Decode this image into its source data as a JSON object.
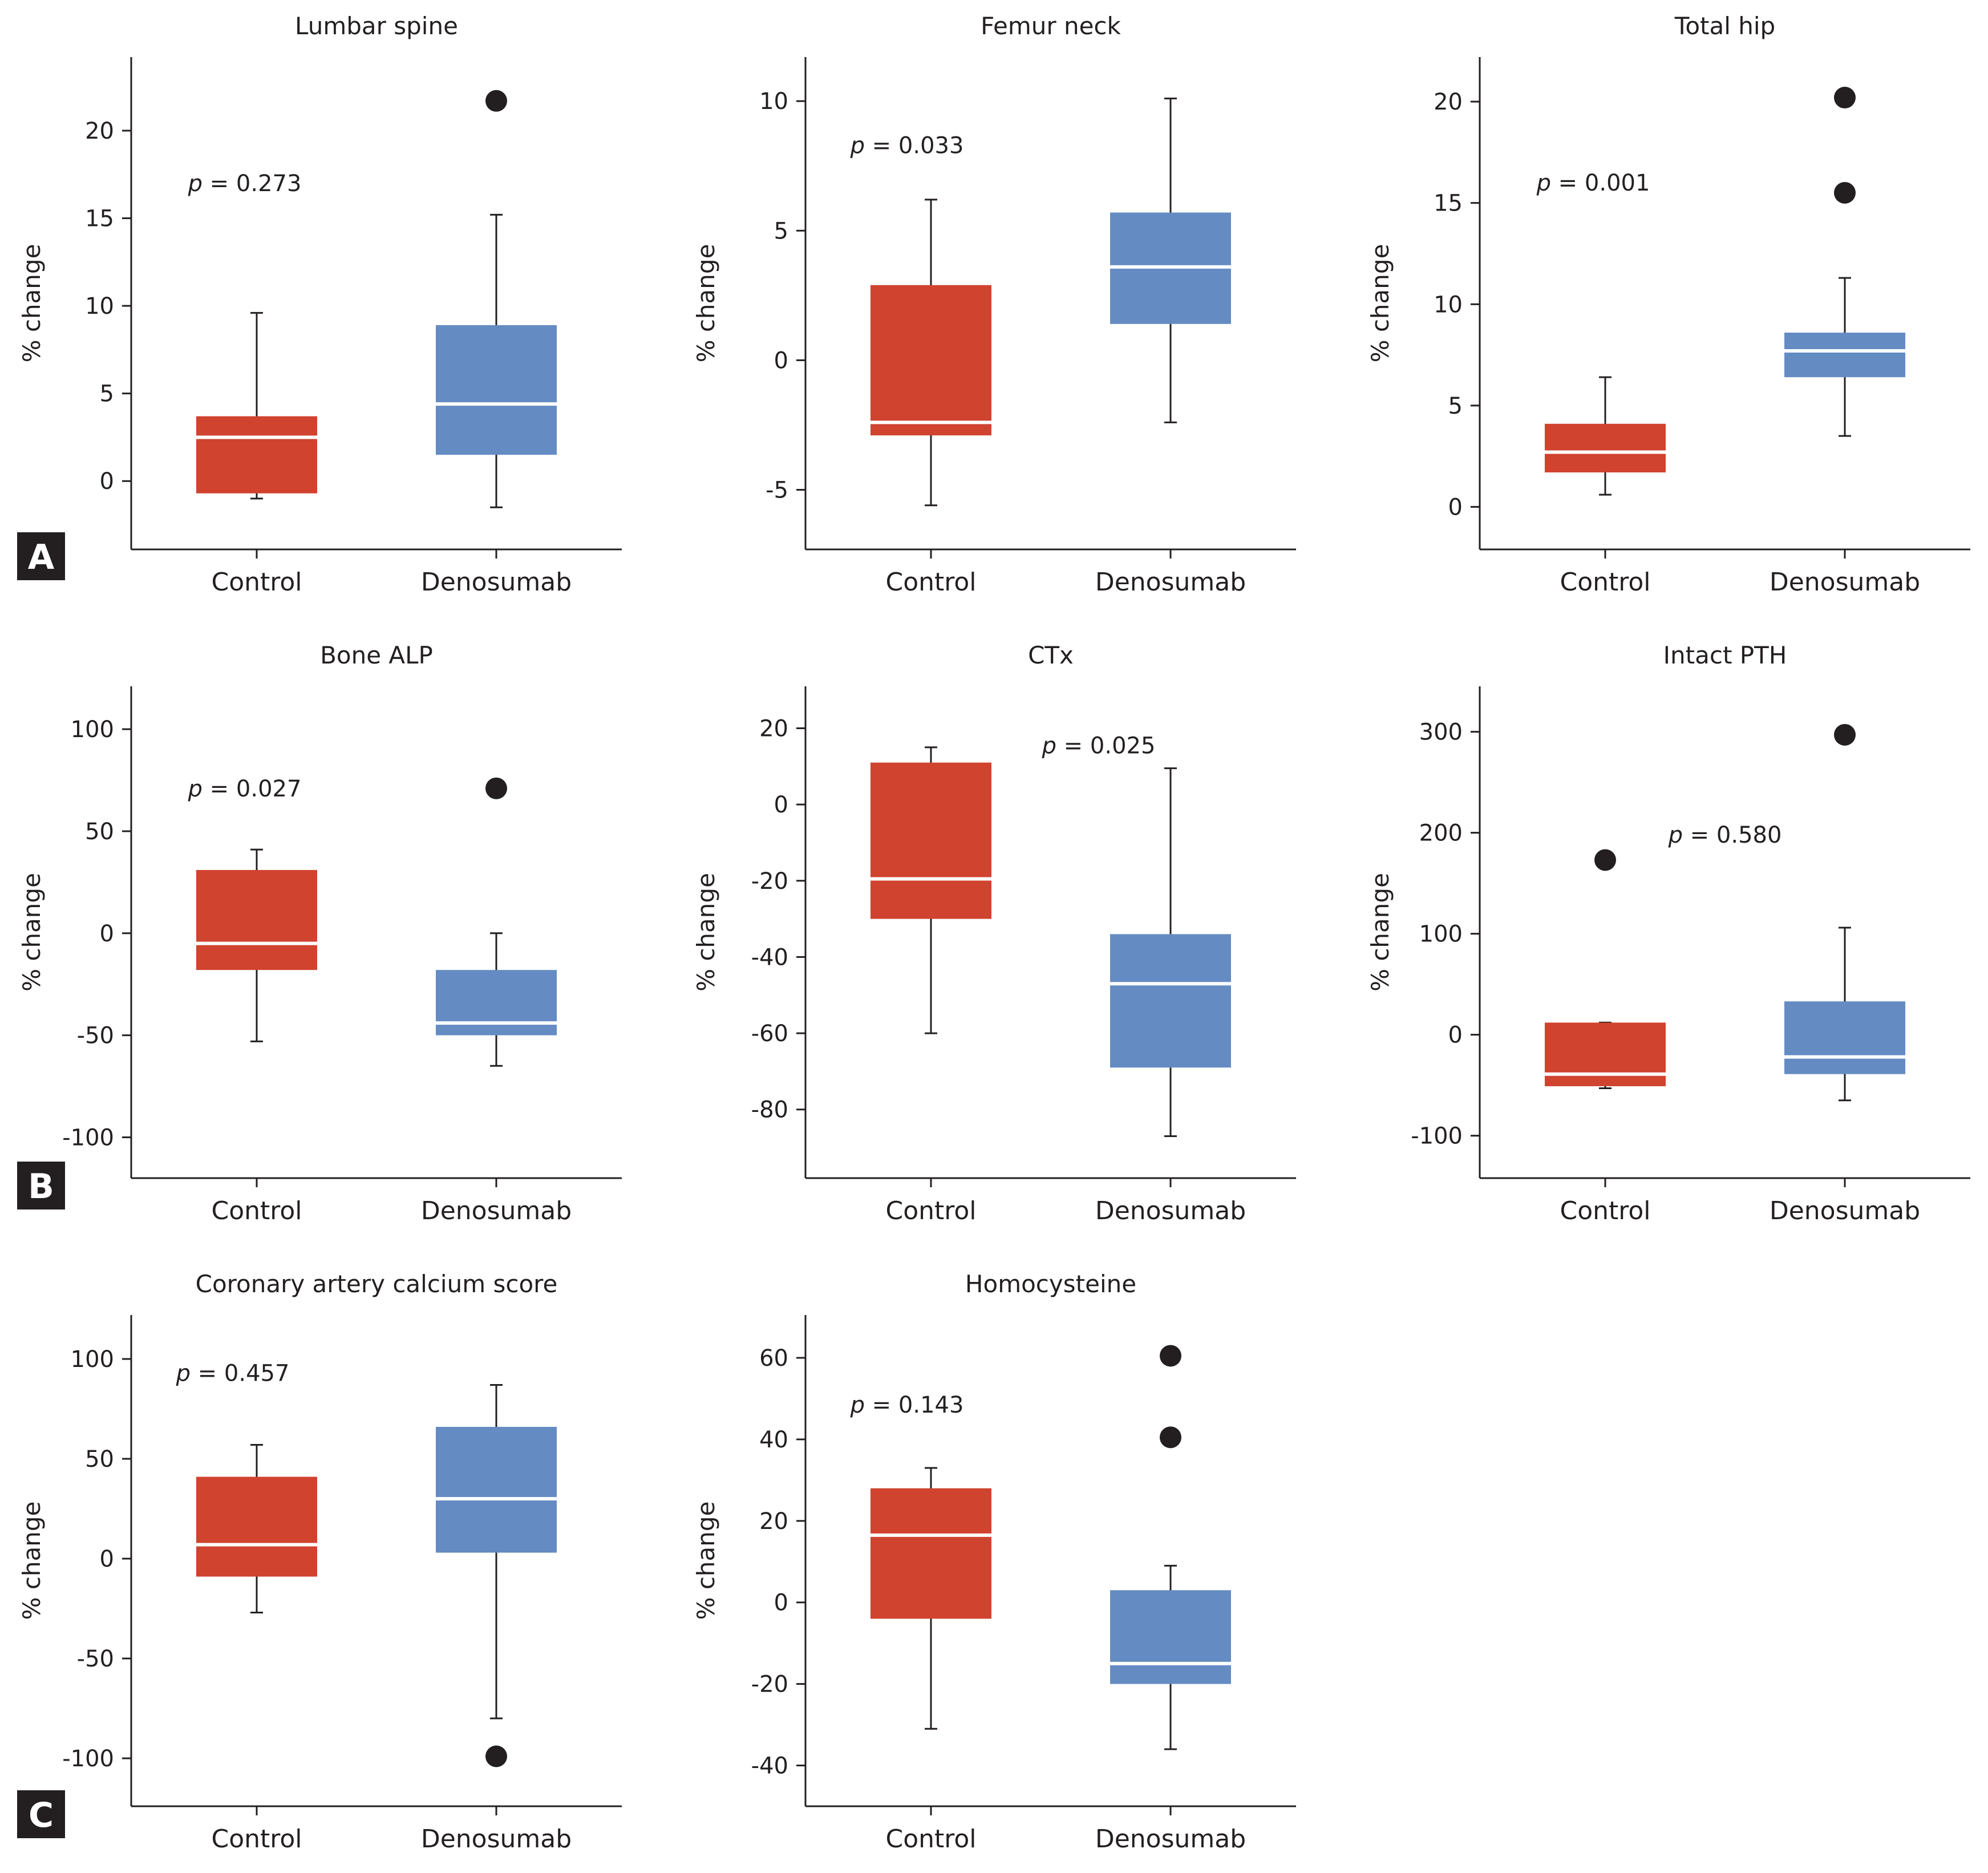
{
  "colors": {
    "control": "#d0432f",
    "denosumab": "#648cc3",
    "median": "#ffffff",
    "axis": "#231f20",
    "outlier": "#231f20"
  },
  "panel_letters": [
    "A",
    "B",
    "C"
  ],
  "chart_data": [
    {
      "type": "box",
      "title": "Lumbar spine",
      "ylabel": "% change",
      "categories": [
        "Control",
        "Denosumab"
      ],
      "yticks": [
        "0",
        "5",
        "10",
        "15",
        "20"
      ],
      "ylim": [
        -3.9,
        24.2
      ],
      "p_label": "p",
      "p_value": "= 0.273",
      "p_at": [
        -0.05,
        17
      ],
      "series": [
        {
          "name": "Control",
          "whisker_low": -1,
          "q1": -0.7,
          "median": 2.5,
          "q3": 3.7,
          "whisker_high": 9.6,
          "outliers": []
        },
        {
          "name": "Denosumab",
          "whisker_low": -1.5,
          "q1": 1.5,
          "median": 4.4,
          "q3": 8.9,
          "whisker_high": 15.2,
          "outliers": [
            21.7
          ]
        }
      ]
    },
    {
      "type": "box",
      "title": "Femur neck",
      "ylabel": "% change",
      "categories": [
        "Control",
        "Denosumab"
      ],
      "yticks": [
        "-5",
        "0",
        "5",
        "10"
      ],
      "ylim": [
        -7.3,
        11.7
      ],
      "p_label": "p",
      "p_value": "= 0.033",
      "p_at": [
        -0.1,
        8.3
      ],
      "series": [
        {
          "name": "Control",
          "whisker_low": -5.6,
          "q1": -2.9,
          "median": -2.4,
          "q3": 2.9,
          "whisker_high": 6.2,
          "outliers": []
        },
        {
          "name": "Denosumab",
          "whisker_low": -2.4,
          "q1": 1.4,
          "median": 3.6,
          "q3": 5.7,
          "whisker_high": 10.1,
          "outliers": []
        }
      ]
    },
    {
      "type": "box",
      "title": "Total hip",
      "ylabel": "% change",
      "categories": [
        "Control",
        "Denosumab"
      ],
      "yticks": [
        "0",
        "5",
        "10",
        "15",
        "20"
      ],
      "ylim": [
        -2.1,
        22.2
      ],
      "p_label": "p",
      "p_value": "= 0.001",
      "p_at": [
        -0.05,
        16
      ],
      "series": [
        {
          "name": "Control",
          "whisker_low": 0.6,
          "q1": 1.7,
          "median": 2.7,
          "q3": 4.1,
          "whisker_high": 6.4,
          "outliers": []
        },
        {
          "name": "Denosumab",
          "whisker_low": 3.5,
          "q1": 6.4,
          "median": 7.7,
          "q3": 8.6,
          "whisker_high": 11.3,
          "outliers": [
            15.5,
            20.2
          ]
        }
      ]
    },
    {
      "type": "box",
      "title": "Bone ALP",
      "ylabel": "% change",
      "categories": [
        "Control",
        "Denosumab"
      ],
      "yticks": [
        "100",
        "50",
        "0",
        "-50",
        "-100"
      ],
      "ylim": [
        -120,
        121
      ],
      "p_label": "p",
      "p_value": "= 0.027",
      "p_at": [
        -0.05,
        71
      ],
      "series": [
        {
          "name": "Control",
          "whisker_low": -53,
          "q1": -18,
          "median": -5,
          "q3": 31,
          "whisker_high": 41,
          "outliers": []
        },
        {
          "name": "Denosumab",
          "whisker_low": -65,
          "q1": -50,
          "median": -44,
          "q3": -18,
          "whisker_high": 0,
          "outliers": [
            71
          ]
        }
      ]
    },
    {
      "type": "box",
      "title": "CTx",
      "ylabel": "% change",
      "categories": [
        "Control",
        "Denosumab"
      ],
      "yticks": [
        "20",
        "0",
        "-20",
        "-40",
        "-60",
        "-80"
      ],
      "ylim": [
        -98,
        31
      ],
      "p_label": "p",
      "p_value": "= 0.025",
      "p_at": [
        0.7,
        15.5
      ],
      "series": [
        {
          "name": "Control",
          "whisker_low": -60,
          "q1": -30,
          "median": -19.5,
          "q3": 11,
          "whisker_high": 15,
          "outliers": []
        },
        {
          "name": "Denosumab",
          "whisker_low": -87,
          "q1": -69,
          "median": -47,
          "q3": -34,
          "whisker_high": 9.5,
          "outliers": []
        }
      ]
    },
    {
      "type": "box",
      "title": "Intact PTH",
      "ylabel": "% change",
      "categories": [
        "Control",
        "Denosumab"
      ],
      "yticks": [
        "300",
        "200",
        "100",
        "0",
        "-100"
      ],
      "ylim": [
        -142,
        345
      ],
      "p_label": "p",
      "p_value": "= 0.580",
      "p_at": [
        0.5,
        198
      ],
      "series": [
        {
          "name": "Control",
          "whisker_low": -53,
          "q1": -51,
          "median": -39,
          "q3": 12,
          "whisker_high": 12,
          "outliers": [
            173
          ]
        },
        {
          "name": "Denosumab",
          "whisker_low": -65,
          "q1": -39,
          "median": -22,
          "q3": 33,
          "whisker_high": 106,
          "outliers": [
            297
          ]
        }
      ]
    },
    {
      "type": "box",
      "title": "Coronary artery calcium score",
      "ylabel": "% change",
      "categories": [
        "Control",
        "Denosumab"
      ],
      "yticks": [
        "100",
        "50",
        "0",
        "-50",
        "-100"
      ],
      "ylim": [
        -124,
        122
      ],
      "p_label": "p",
      "p_value": "= 0.457",
      "p_at": [
        -0.1,
        93
      ],
      "series": [
        {
          "name": "Control",
          "whisker_low": -27,
          "q1": -9,
          "median": 7,
          "q3": 41,
          "whisker_high": 57,
          "outliers": []
        },
        {
          "name": "Denosumab",
          "whisker_low": -80,
          "q1": 3,
          "median": 30,
          "q3": 66,
          "whisker_high": 87,
          "outliers": [
            -99
          ]
        }
      ]
    },
    {
      "type": "box",
      "title": "Homocysteine",
      "ylabel": "% change",
      "categories": [
        "Control",
        "Denosumab"
      ],
      "yticks": [
        "60",
        "40",
        "20",
        "0",
        "-20",
        "-40"
      ],
      "ylim": [
        -50,
        70.5
      ],
      "p_label": "p",
      "p_value": "= 0.143",
      "p_at": [
        -0.1,
        48.5
      ],
      "series": [
        {
          "name": "Control",
          "whisker_low": -31,
          "q1": -4,
          "median": 16.5,
          "q3": 28,
          "whisker_high": 33,
          "outliers": []
        },
        {
          "name": "Denosumab",
          "whisker_low": -36,
          "q1": -20,
          "median": -15,
          "q3": 3,
          "whisker_high": 9,
          "outliers": [
            40.5,
            60.5
          ]
        }
      ]
    }
  ]
}
